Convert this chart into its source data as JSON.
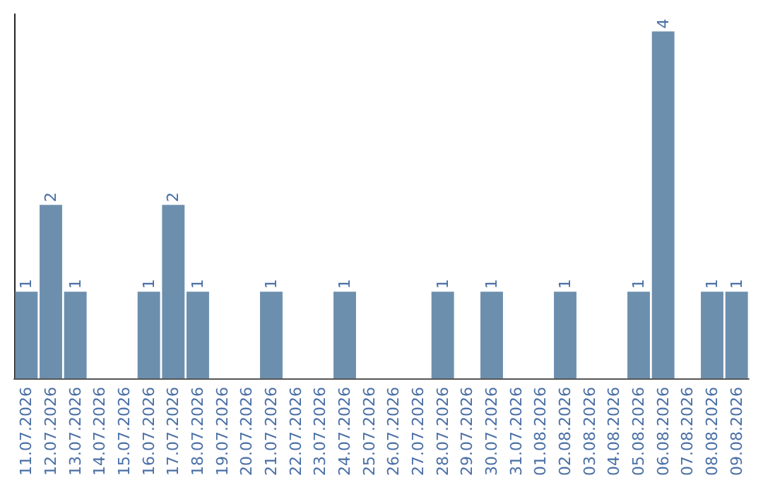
{
  "chart_data": {
    "type": "bar",
    "categories": [
      "11.07.2026",
      "12.07.2026",
      "13.07.2026",
      "14.07.2026",
      "15.07.2026",
      "16.07.2026",
      "17.07.2026",
      "18.07.2026",
      "19.07.2026",
      "20.07.2026",
      "21.07.2026",
      "22.07.2026",
      "23.07.2026",
      "24.07.2026",
      "25.07.2026",
      "26.07.2026",
      "27.07.2026",
      "28.07.2026",
      "29.07.2026",
      "30.07.2026",
      "31.07.2026",
      "01.08.2026",
      "02.08.2026",
      "03.08.2026",
      "04.08.2026",
      "05.08.2026",
      "06.08.2026",
      "07.08.2026",
      "08.08.2026",
      "09.08.2026"
    ],
    "values": [
      1,
      2,
      1,
      0,
      0,
      1,
      2,
      1,
      0,
      0,
      1,
      0,
      0,
      1,
      0,
      0,
      0,
      1,
      0,
      1,
      0,
      0,
      1,
      0,
      0,
      1,
      4,
      0,
      1,
      1
    ],
    "value_labels": [
      "1",
      "2",
      "1",
      null,
      null,
      "1",
      "2",
      "1",
      null,
      null,
      "1",
      null,
      null,
      "1",
      null,
      null,
      null,
      "1",
      null,
      "1",
      null,
      null,
      "1",
      null,
      null,
      "1",
      "4",
      null,
      "1",
      "1"
    ],
    "color": "#6d8fae",
    "ylim": [
      0,
      4.2
    ],
    "tick_labels": "x"
  }
}
